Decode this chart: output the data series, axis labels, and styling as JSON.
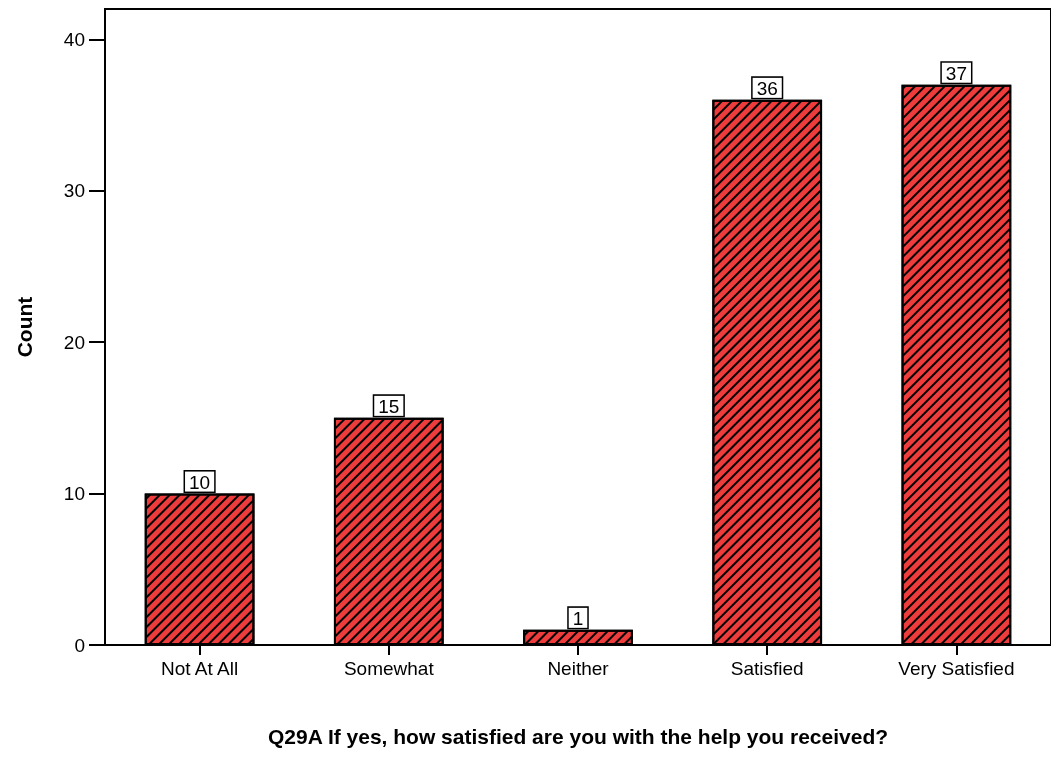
{
  "chart_data": {
    "type": "bar",
    "xlabel": "Q29A If yes, how satisfied are you with the help you received?",
    "ylabel": "Count",
    "categories": [
      "Not At All",
      "Somewhat",
      "Neither",
      "Satisfied",
      "Very Satisfied"
    ],
    "values": [
      10,
      15,
      1,
      36,
      37
    ],
    "color": "#ee3b3b",
    "ylim": [
      0,
      42
    ],
    "yticks": [
      0,
      10,
      20,
      30,
      40
    ],
    "grid": false,
    "data_labels": true
  }
}
